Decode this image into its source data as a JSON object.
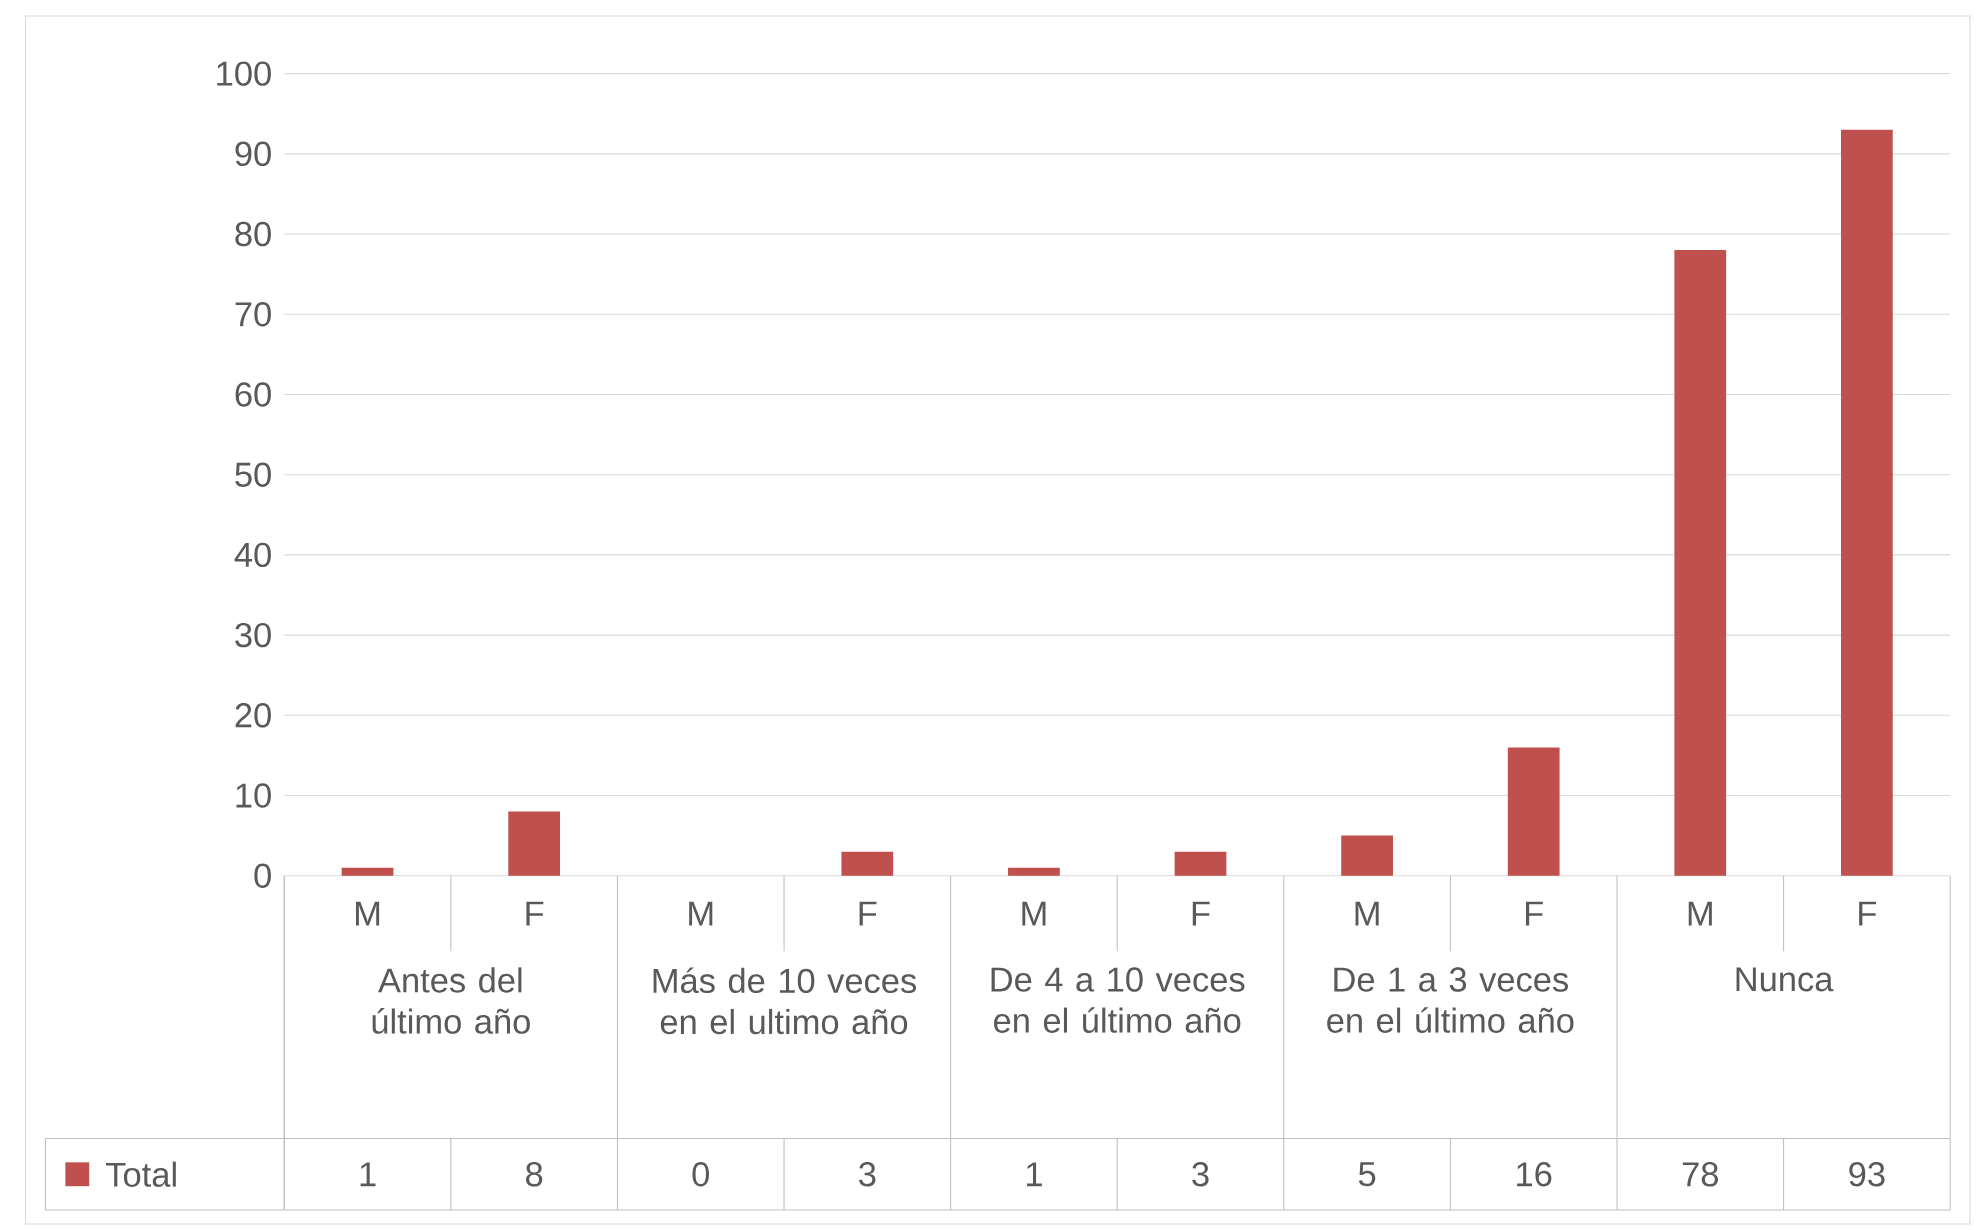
{
  "chart_data": {
    "type": "bar",
    "categories": [
      "M",
      "F",
      "M",
      "F",
      "M",
      "F",
      "M",
      "F",
      "M",
      "F"
    ],
    "annotations": [
      "Antes del último año",
      "Más de 10 veces en el ultimo año",
      "De 4 a 10 veces en el último año",
      "De 1 a 3 veces en el último año",
      "Nunca"
    ],
    "series": [
      {
        "name": "Total",
        "color": "#c0504d",
        "values": [
          1,
          8,
          0,
          3,
          1,
          3,
          5,
          16,
          78,
          93
        ]
      }
    ],
    "ylim": [
      0,
      100
    ],
    "yticks": [
      0,
      10,
      20,
      30,
      40,
      50,
      60,
      70,
      80,
      90,
      100
    ],
    "grid": "y",
    "legend": "bottom",
    "data_labels": true
  }
}
